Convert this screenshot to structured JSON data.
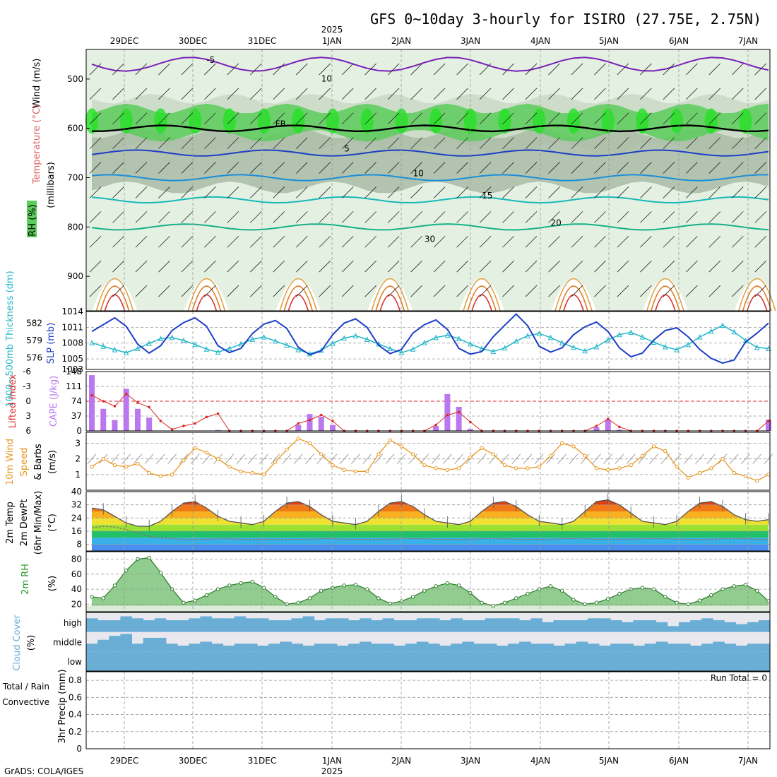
{
  "title": "GFS 0~10day 3-hourly for ISIRO (27.75E, 2.75N)",
  "year_label": "2025",
  "footer": "GrADS: COLA/IGES",
  "run_total": "Run Total = 0",
  "dates": [
    "29DEC",
    "30DEC",
    "31DEC",
    "1JAN",
    "2JAN",
    "3JAN",
    "4JAN",
    "5JAN",
    "6JAN",
    "7JAN"
  ],
  "colors": {
    "rh_light": "#e4f1e2",
    "rh_mid": "#c9d9c6",
    "rh_dark": "#a9bba6",
    "rh_green": "#5ccd5c",
    "rh_bright": "#23e123",
    "cape_bar": "#bb77ee",
    "lifted": "#dd2a2a",
    "slp": "#1d3fc5",
    "thickness": "#22b6c8",
    "wind_speed": "#e8961e",
    "cloud_fill": "#6aaed6",
    "cloud_bg": "#e8e8ee",
    "temp_line": "#555555",
    "dew_line": "#8a7070"
  },
  "chart_data": [
    {
      "type": "heatmap",
      "panel": "cross-section",
      "y_labels": [
        "Wind (m/s)",
        "Temperature (°C)",
        "RH (%)",
        "(millibars)"
      ],
      "ylim": [
        440,
        970
      ],
      "y_ticks": [
        500,
        600,
        700,
        800,
        900
      ],
      "isotherms": [
        {
          "label": "-5",
          "level": 470,
          "color": "#7a1fb8"
        },
        {
          "label": "FR",
          "level": 600,
          "color": "#000000"
        },
        {
          "label": "5",
          "level": 650,
          "color": "#1d3fc5"
        },
        {
          "label": "10",
          "level": 700,
          "color": "#1a8fd8"
        },
        {
          "label": "15",
          "level": 745,
          "color": "#18b8b8"
        },
        {
          "label": "20",
          "level": 800,
          "color": "#18b088"
        }
      ],
      "rh_contour_labels": [
        "10",
        "30"
      ]
    },
    {
      "type": "line",
      "panel": "slp-thickness",
      "y_labels": [
        "1000~500mb Thickness (dm)",
        "SLP (mb)"
      ],
      "slp_ticks": [
        1003,
        1005,
        1008,
        1011,
        1014
      ],
      "thickness_ticks": [
        576,
        579,
        582
      ],
      "ylim": [
        1003,
        1014
      ],
      "slp_values": [
        1010.2,
        1011.5,
        1012.8,
        1011.2,
        1007.8,
        1006.1,
        1007.5,
        1010.4,
        1011.9,
        1012.8,
        1011.2,
        1007.5,
        1006.2,
        1007.0,
        1009.8,
        1011.6,
        1012.3,
        1010.8,
        1007.2,
        1005.8,
        1006.5,
        1009.6,
        1011.8,
        1012.6,
        1011.0,
        1007.6,
        1006.0,
        1006.8,
        1009.9,
        1011.5,
        1012.4,
        1010.6,
        1007.0,
        1005.9,
        1006.4,
        1009.2,
        1011.4,
        1013.5,
        1011.3,
        1007.4,
        1006.3,
        1007.1,
        1009.6,
        1011.1,
        1012.0,
        1010.2,
        1007.1,
        1005.4,
        1006.1,
        1008.6,
        1010.4,
        1010.9,
        1009.2,
        1006.8,
        1005.1,
        1004.2,
        1004.8,
        1008.2,
        1009.9,
        1011.8
      ],
      "thickness_values": [
        578.6,
        578.0,
        577.4,
        576.9,
        577.6,
        578.5,
        579.3,
        579.5,
        579.0,
        578.3,
        577.5,
        577.0,
        577.6,
        578.4,
        579.2,
        579.6,
        578.9,
        578.2,
        577.4,
        576.7,
        577.3,
        578.5,
        579.4,
        579.8,
        579.2,
        578.4,
        577.6,
        576.9,
        577.5,
        578.6,
        579.5,
        579.9,
        579.3,
        578.4,
        577.6,
        577.1,
        577.7,
        578.9,
        579.8,
        580.2,
        579.5,
        578.6,
        577.8,
        577.2,
        577.9,
        579.1,
        580.0,
        580.4,
        579.6,
        578.7,
        577.9,
        577.4,
        578.3,
        579.6,
        580.6,
        581.6,
        580.5,
        579.0,
        577.8,
        577.6
      ]
    },
    {
      "type": "bar",
      "panel": "cape-lifted-index",
      "y_labels": [
        "Lifted Index",
        "CAPE (J/kg)"
      ],
      "cape_ticks": [
        0,
        37,
        74,
        111,
        148
      ],
      "li_ticks": [
        "-6",
        "-3",
        "0",
        "3",
        "6"
      ],
      "ylim": [
        0,
        148
      ],
      "cape_values": [
        139,
        55,
        27,
        105,
        55,
        33,
        0,
        0,
        0,
        0,
        0,
        2,
        0,
        0,
        0,
        0,
        0,
        0,
        15,
        42,
        35,
        15,
        0,
        0,
        0,
        0,
        0,
        0,
        0,
        0,
        12,
        92,
        60,
        5,
        0,
        0,
        0,
        0,
        0,
        0,
        0,
        0,
        0,
        0,
        9,
        28,
        3,
        0,
        0,
        0,
        0,
        0,
        0,
        0,
        0,
        0,
        0,
        0,
        0,
        28
      ],
      "li_values": [
        -1.2,
        0.0,
        1.0,
        -1.5,
        0.3,
        1.2,
        4.0,
        5.7,
        5.0,
        4.5,
        3.2,
        2.5,
        6.0,
        6.0,
        6.0,
        6.0,
        6.0,
        6.0,
        4.5,
        3.8,
        2.8,
        4.0,
        6.0,
        6.0,
        6.0,
        6.0,
        6.0,
        6.0,
        6.0,
        6.0,
        4.8,
        2.8,
        2.2,
        4.2,
        6.0,
        6.0,
        6.0,
        6.0,
        6.0,
        6.0,
        6.0,
        6.0,
        6.0,
        6.0,
        5.0,
        3.6,
        5.2,
        6.0,
        6.0,
        6.0,
        6.0,
        6.0,
        6.0,
        6.0,
        6.0,
        6.0,
        6.0,
        6.0,
        6.0,
        4.0
      ]
    },
    {
      "type": "line",
      "panel": "10m-wind",
      "y_labels": [
        "10m Wind",
        "Speed",
        "& Barbs",
        "(m/s)"
      ],
      "y_ticks": [
        1,
        2,
        3
      ],
      "ylim": [
        0,
        3.7
      ],
      "values": [
        1.5,
        2.0,
        1.6,
        1.5,
        1.7,
        1.1,
        0.9,
        1.0,
        1.9,
        2.7,
        2.4,
        2.0,
        1.5,
        1.2,
        1.1,
        1.0,
        1.8,
        2.6,
        3.3,
        3.0,
        2.3,
        1.6,
        1.3,
        1.2,
        1.2,
        2.3,
        3.2,
        2.8,
        2.3,
        1.6,
        1.4,
        1.3,
        1.4,
        2.1,
        2.7,
        2.3,
        1.6,
        1.4,
        1.4,
        1.5,
        2.2,
        3.0,
        2.8,
        2.2,
        1.4,
        1.3,
        1.4,
        1.6,
        2.2,
        2.8,
        2.5,
        1.5,
        0.8,
        1.1,
        1.4,
        2.0,
        1.1,
        0.9,
        0.6,
        1.0
      ]
    },
    {
      "type": "area",
      "panel": "2m-temperature",
      "y_labels": [
        "2m Temp",
        "2m DewPt",
        "(6hr Min/Max)",
        "(°C)"
      ],
      "y_ticks": [
        8,
        16,
        24,
        32,
        40
      ],
      "ylim": [
        4,
        40
      ],
      "temp_values": [
        30,
        29,
        25,
        21,
        19,
        19,
        22,
        28,
        33,
        34,
        30,
        25,
        22,
        21,
        20,
        22,
        28,
        33,
        34,
        31,
        26,
        22,
        21,
        20,
        22,
        28,
        33,
        34,
        31,
        26,
        22,
        21,
        20,
        22,
        28,
        33,
        34,
        31,
        26,
        22,
        21,
        20,
        22,
        28,
        34,
        35,
        32,
        27,
        22,
        21,
        20,
        22,
        28,
        33,
        34,
        31,
        26,
        23,
        22,
        23
      ],
      "dewpoint_values": [
        18,
        19,
        18.5,
        17,
        15,
        13,
        12,
        11.5,
        11,
        11,
        11,
        11.5,
        11.5,
        11,
        11,
        11,
        11,
        11,
        11,
        11,
        11.5,
        11.5,
        11,
        11,
        11,
        11,
        11,
        11.5,
        11.5,
        11.5,
        11,
        11,
        11,
        11,
        11.5,
        11.5,
        11.5,
        11,
        11,
        11,
        11,
        11.5,
        11.5,
        11.5,
        11,
        11,
        11,
        11,
        11.5,
        11.5,
        11.5,
        11,
        11,
        11,
        11,
        11.5,
        11.5,
        11.5,
        11,
        11
      ]
    },
    {
      "type": "area",
      "panel": "2m-rh",
      "y_labels": [
        "2m RH",
        "(%)"
      ],
      "y_ticks": [
        20,
        40,
        60,
        80
      ],
      "ylim": [
        10,
        90
      ],
      "values": [
        30,
        28,
        45,
        65,
        80,
        82,
        62,
        40,
        22,
        25,
        32,
        40,
        45,
        48,
        50,
        42,
        30,
        20,
        22,
        28,
        38,
        42,
        45,
        46,
        40,
        28,
        21,
        24,
        30,
        38,
        44,
        48,
        45,
        35,
        22,
        18,
        22,
        28,
        34,
        40,
        44,
        38,
        26,
        20,
        22,
        27,
        34,
        40,
        42,
        40,
        30,
        22,
        20,
        25,
        32,
        40,
        44,
        46,
        38,
        24
      ]
    },
    {
      "type": "bar",
      "panel": "cloud-cover",
      "y_labels": [
        "Cloud Cover",
        "(%)"
      ],
      "tiers": [
        "high",
        "middle",
        "low"
      ],
      "high_values": [
        70,
        60,
        60,
        80,
        70,
        60,
        70,
        60,
        60,
        70,
        80,
        70,
        70,
        80,
        70,
        70,
        60,
        60,
        70,
        80,
        60,
        70,
        70,
        60,
        70,
        60,
        70,
        60,
        60,
        70,
        70,
        60,
        70,
        60,
        60,
        70,
        70,
        70,
        60,
        70,
        50,
        60,
        60,
        60,
        70,
        70,
        60,
        50,
        60,
        60,
        50,
        30,
        50,
        60,
        70,
        60,
        50,
        40,
        50,
        60
      ],
      "middle_values": [
        40,
        60,
        80,
        90,
        40,
        70,
        70,
        40,
        30,
        40,
        50,
        40,
        30,
        40,
        40,
        30,
        40,
        50,
        40,
        30,
        40,
        40,
        30,
        40,
        50,
        40,
        40,
        30,
        40,
        50,
        40,
        30,
        40,
        50,
        40,
        40,
        30,
        40,
        50,
        40,
        40,
        30,
        40,
        50,
        40,
        30,
        40,
        40,
        30,
        40,
        50,
        40,
        40,
        30,
        40,
        50,
        40,
        30,
        40,
        40
      ],
      "low_values": [
        100,
        100,
        100,
        100,
        100,
        100,
        100,
        100,
        100,
        100,
        100,
        100,
        100,
        100,
        100,
        100,
        100,
        100,
        100,
        100,
        100,
        100,
        100,
        100,
        100,
        100,
        100,
        100,
        100,
        100,
        100,
        100,
        100,
        100,
        100,
        100,
        100,
        100,
        100,
        100,
        100,
        100,
        100,
        100,
        100,
        100,
        100,
        100,
        100,
        100,
        100,
        100,
        100,
        100,
        100,
        100,
        100,
        100,
        100,
        100
      ]
    },
    {
      "type": "bar",
      "panel": "3hr-precip",
      "y_labels": [
        "Total / Rain",
        "Convective",
        "3hr Precip (mm)"
      ],
      "y_ticks": [
        0,
        0.2,
        0.4,
        0.6,
        0.8
      ],
      "ylim": [
        0,
        0.9
      ],
      "values": [
        0,
        0,
        0,
        0,
        0,
        0,
        0,
        0,
        0,
        0,
        0,
        0,
        0,
        0,
        0,
        0,
        0,
        0,
        0,
        0,
        0,
        0,
        0,
        0,
        0,
        0,
        0,
        0,
        0,
        0,
        0,
        0,
        0,
        0,
        0,
        0,
        0,
        0,
        0,
        0,
        0,
        0,
        0,
        0,
        0,
        0,
        0,
        0,
        0,
        0,
        0,
        0,
        0,
        0,
        0,
        0,
        0,
        0,
        0,
        0
      ]
    }
  ]
}
